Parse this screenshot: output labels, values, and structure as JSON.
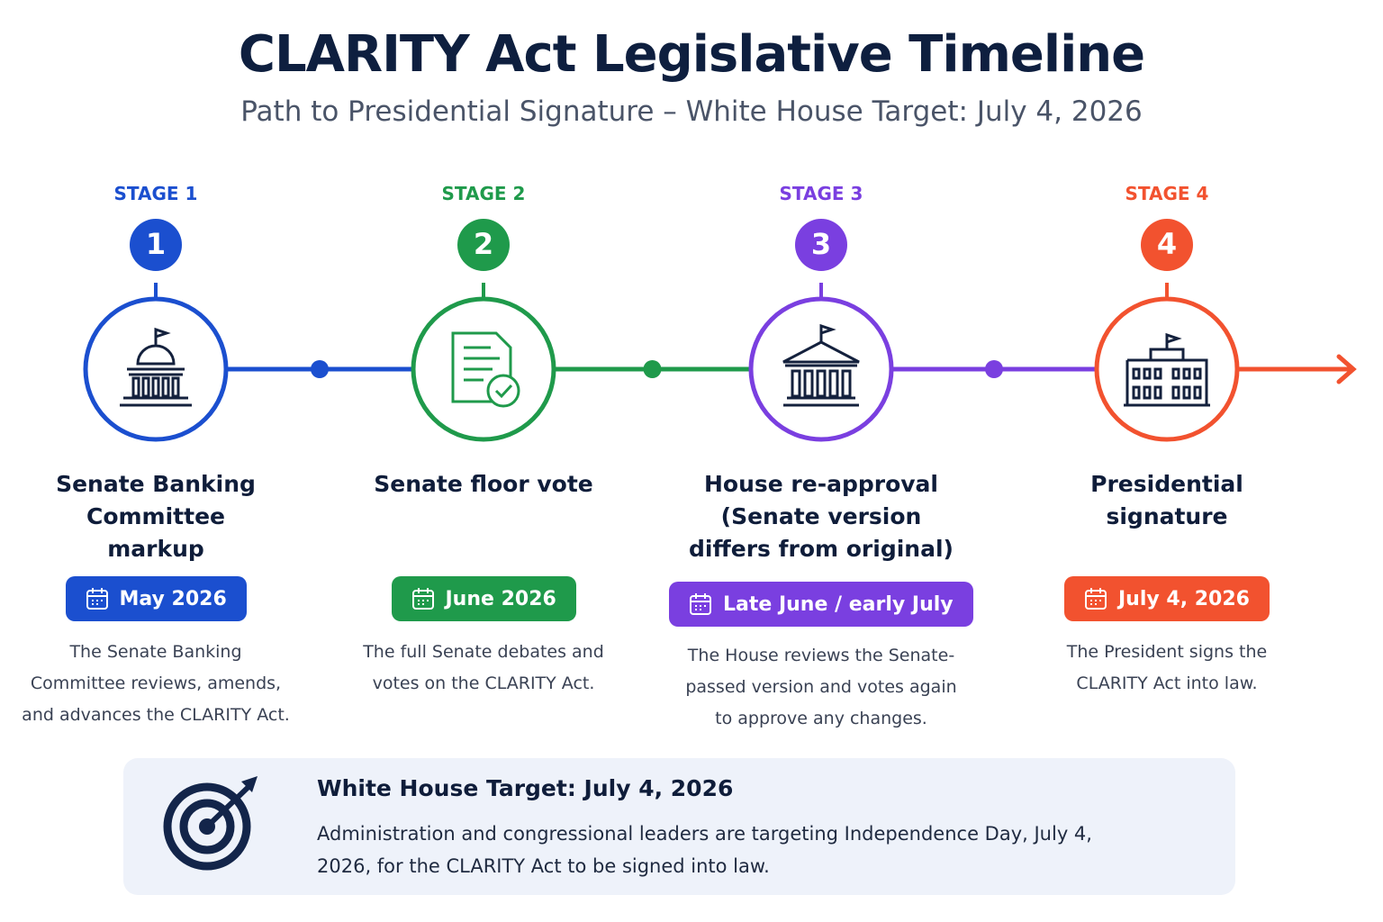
{
  "header": {
    "title": "CLARITY Act Legislative Timeline",
    "subtitle": "Path to Presidential Signature – White House Target: July 4, 2026"
  },
  "stages": [
    {
      "label": "STAGE 1",
      "number": "1",
      "color": "#1b4fcf",
      "title": "Senate Banking Committee markup",
      "date": "May 2026",
      "description": "The Senate Banking Committee reviews, amends, and advances the CLARITY Act."
    },
    {
      "label": "STAGE 2",
      "number": "2",
      "color": "#1f9a4b",
      "title": "Senate floor vote",
      "date": "June 2026",
      "description": "The full Senate debates and votes on the CLARITY Act."
    },
    {
      "label": "STAGE 3",
      "number": "3",
      "color": "#7a3fe0",
      "title": "House re-approval (Senate version differs from original)",
      "date": "Late June / early July",
      "description": "The House reviews the Senate-passed version and votes again to approve any changes."
    },
    {
      "label": "STAGE 4",
      "number": "4",
      "color": "#f2522f",
      "title": "Presidential signature",
      "date": "July 4, 2026",
      "description": "The President signs the CLARITY Act into law."
    }
  ],
  "target": {
    "title": "White House Target: July 4, 2026",
    "text": "Administration and congressional leaders are targeting Independence Day, July 4, 2026, for the CLARITY Act to be signed into law."
  }
}
